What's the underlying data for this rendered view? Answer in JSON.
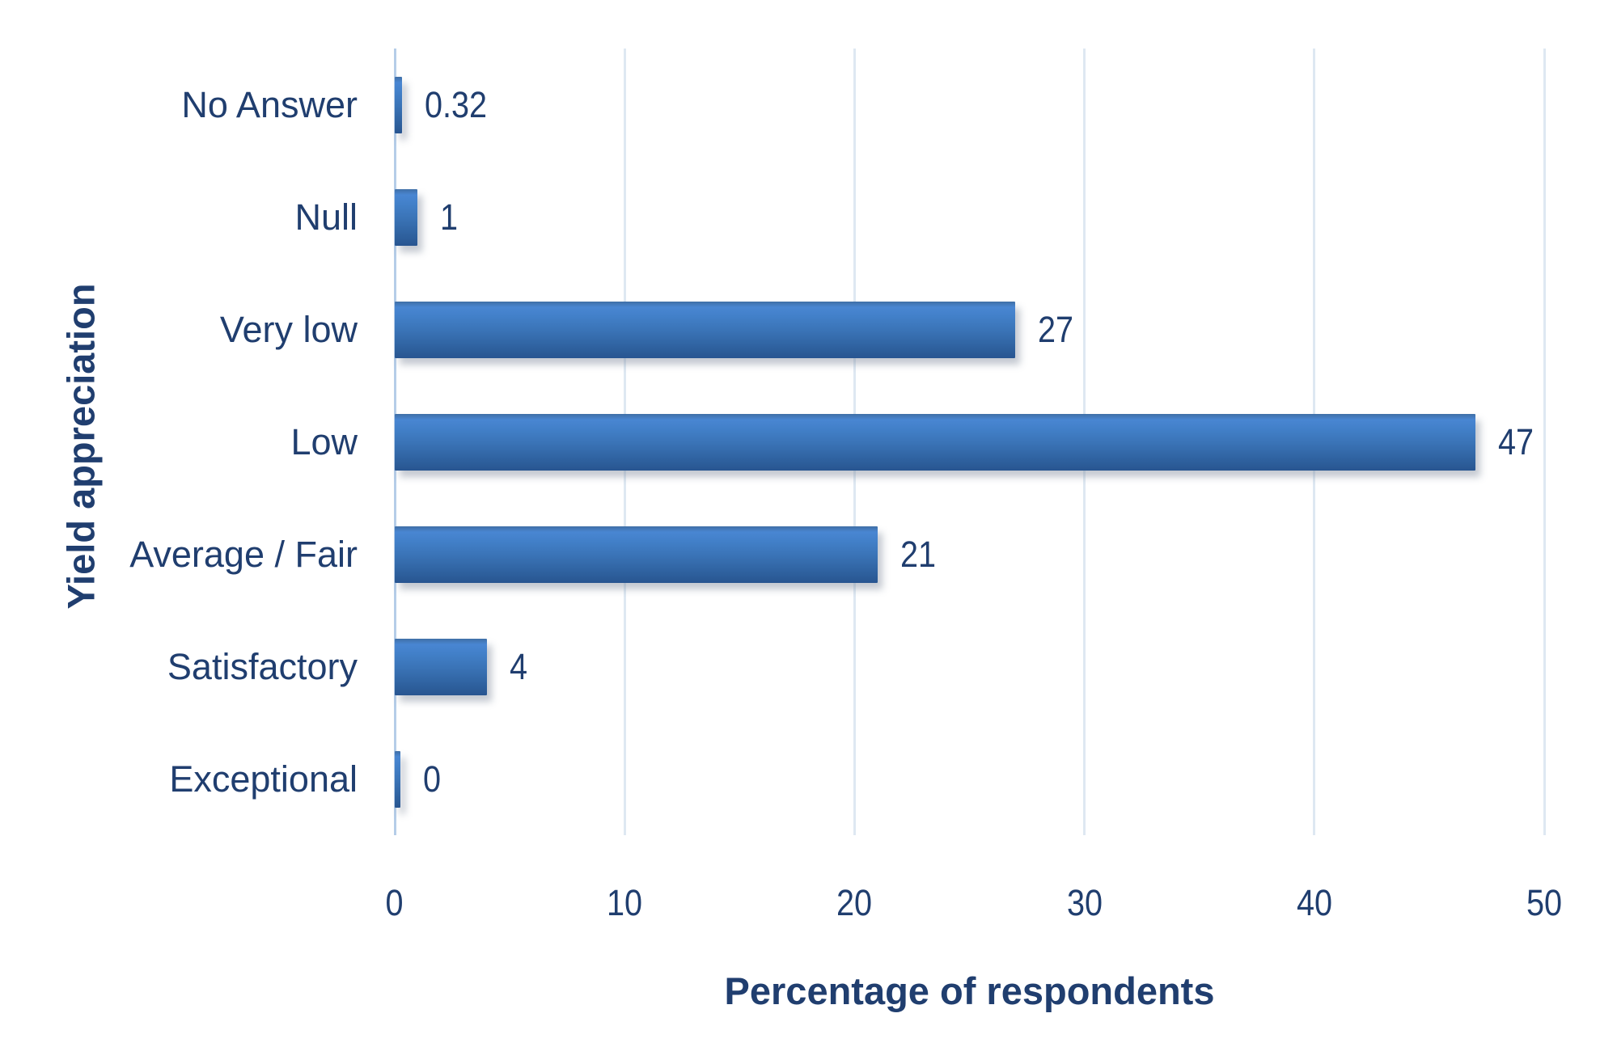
{
  "chart_data": {
    "type": "bar",
    "orientation": "horizontal",
    "categories": [
      "No Answer",
      "Null",
      "Very low",
      "Low",
      "Average / Fair",
      "Satisfactory",
      "Exceptional"
    ],
    "values": [
      0.32,
      1,
      27,
      47,
      21,
      4,
      0
    ],
    "value_labels": [
      "0.32",
      "1",
      "27",
      "47",
      "21",
      "4",
      "0"
    ],
    "title": "",
    "xlabel": "Percentage of respondents",
    "ylabel": "Yield appreciation",
    "xlim": [
      0,
      50
    ],
    "xticks": [
      0,
      10,
      20,
      30,
      40,
      50
    ],
    "grid": "vertical gridlines at each x tick",
    "legend_position": "none",
    "colors": {
      "bar_gradient_top": "#4986d2",
      "bar_gradient_mid": "#3a73b6",
      "bar_gradient_bottom": "#285590",
      "text": "#203e6f",
      "gridline": "#dee8f2",
      "zero_axis_line": "#b5cde8",
      "background": "#ffffff"
    }
  }
}
